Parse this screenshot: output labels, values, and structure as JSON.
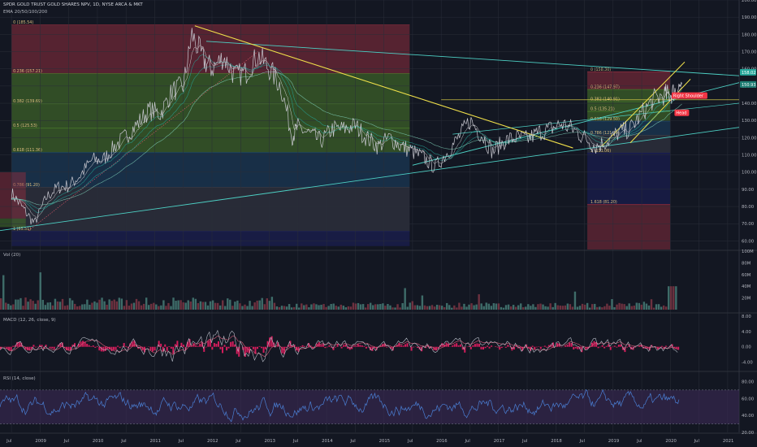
{
  "header": {
    "title": "SPDR GOLD TRUST GOLD SHARES NPV, 1D, NYSE ARCA & MKT",
    "indicator": "EMA 20/50/100/200"
  },
  "colors": {
    "background": "#131722",
    "price": "#c9c9d1",
    "ema": "#26a69a",
    "trend_yellow": "#f0e04a",
    "trend_teal": "#4dd0c4",
    "fib_red": "#8e2e3e",
    "fib_green": "#4a7a2a",
    "fib_blue": "#1e4466",
    "fib_navy": "#1c1f5c",
    "macd_hist": "#e91e63",
    "rsi_line": "#4a7fd4",
    "rsi_band": "#3c2a56",
    "pattern_label": "#f23645"
  },
  "panels": {
    "vol_label": "Vol (20)",
    "macd_label": "MACD (12, 26, close, 9)",
    "rsi_label": "RSI (14, close)"
  },
  "chart_data": [
    {
      "type": "line",
      "title": "SPDR GOLD TRUST GOLD SHARES NPV, 1D, NYSE ARCA & MKT",
      "x": [
        2008.5,
        2008.7,
        2008.9,
        2009.1,
        2009.3,
        2009.5,
        2009.7,
        2009.9,
        2010.1,
        2010.3,
        2010.5,
        2010.7,
        2010.9,
        2011.1,
        2011.3,
        2011.5,
        2011.65,
        2011.85,
        2012.0,
        2012.2,
        2012.4,
        2012.6,
        2012.8,
        2013.0,
        2013.2,
        2013.4,
        2013.5,
        2013.7,
        2013.9,
        2014.1,
        2014.3,
        2014.5,
        2014.7,
        2014.9,
        2015.1,
        2015.3,
        2015.5,
        2015.7,
        2015.9,
        2016.1,
        2016.3,
        2016.5,
        2016.7,
        2016.9,
        2017.1,
        2017.3,
        2017.5,
        2017.7,
        2017.9,
        2018.1,
        2018.3,
        2018.5,
        2018.7,
        2018.9,
        2019.1,
        2019.3,
        2019.5,
        2019.7,
        2019.9,
        2020.0,
        2020.1,
        2020.2
      ],
      "y": [
        88,
        79,
        70,
        85,
        91,
        92,
        98,
        107,
        107,
        115,
        121,
        128,
        136,
        134,
        147,
        150,
        180,
        165,
        160,
        167,
        156,
        158,
        168,
        160,
        150,
        121,
        126,
        122,
        118,
        125,
        125,
        127,
        120,
        115,
        120,
        115,
        112,
        108,
        103,
        111,
        120,
        130,
        122,
        112,
        118,
        120,
        119,
        123,
        125,
        128,
        125,
        120,
        115,
        118,
        123,
        125,
        134,
        142,
        145,
        145,
        148,
        151
      ],
      "xlim": [
        2008.3,
        2021.2
      ],
      "ylim": [
        55,
        200
      ],
      "y_ticks": [
        60,
        70,
        80,
        90,
        100,
        110,
        120,
        130,
        140,
        150,
        160,
        170,
        180,
        190,
        200
      ],
      "x_ticks": [
        "Jul",
        "2009",
        "Jul",
        "2010",
        "Jul",
        "2011",
        "Jul",
        "2012",
        "Jul",
        "2013",
        "Jul",
        "2014",
        "Jul",
        "2015",
        "Jul",
        "2016",
        "Jul",
        "2017",
        "Jul",
        "2018",
        "Jul",
        "2019",
        "Jul",
        "2020",
        "Jul",
        "2021"
      ],
      "x_tick_values": [
        2008.5,
        2009,
        2009.5,
        2010,
        2010.5,
        2011,
        2011.5,
        2012,
        2012.5,
        2013,
        2013.5,
        2014,
        2014.5,
        2015,
        2015.5,
        2016,
        2016.5,
        2017,
        2017.5,
        2018,
        2018.5,
        2019,
        2019.5,
        2020,
        2020.5,
        2021
      ],
      "series": [
        {
          "name": "EMA 20/50/100/200"
        }
      ],
      "fib_left": {
        "x_range": [
          2008.5,
          2015.45
        ],
        "levels": [
          {
            "label": "0 (185.54)",
            "value": 185.54
          },
          {
            "label": "0.236 (157.21)",
            "value": 157.21
          },
          {
            "label": "0.382 (139.69)",
            "value": 139.69
          },
          {
            "label": "0.5 (125.53)",
            "value": 125.53
          },
          {
            "label": "0.618 (111.36)",
            "value": 111.36
          },
          {
            "label": "0.786 (91.20)",
            "value": 91.2
          },
          {
            "label": "1 (65.51)",
            "value": 65.51
          }
        ]
      },
      "fib_right": {
        "x_range": [
          2018.55,
          2020.0
        ],
        "levels": [
          {
            "label": "0 (158.30)",
            "value": 158.3
          },
          {
            "label": "0.236 (147.97)",
            "value": 147.97
          },
          {
            "label": "0.382 (140.91)",
            "value": 140.91
          },
          {
            "label": "0.5 (135.21)",
            "value": 135.21
          },
          {
            "label": "0.618 (129.50)",
            "value": 129.5
          },
          {
            "label": "0.786 (121.39)",
            "value": 121.39
          },
          {
            "label": "1 (111.06)",
            "value": 111.06
          },
          {
            "label": "1.618 (81.20)",
            "value": 81.2
          }
        ]
      },
      "annotations": [
        "Right Shoulder",
        "Head"
      ],
      "price_tags": [
        "158.02",
        "150.93"
      ]
    },
    {
      "type": "bar",
      "title": "Vol (20)",
      "ylim": [
        0,
        100
      ],
      "y_ticks": [
        "20M",
        "40M",
        "60M",
        "80M",
        "100M"
      ]
    },
    {
      "type": "line",
      "title": "MACD (12, 26, close, 9)",
      "ylim": [
        -6,
        8
      ],
      "y_ticks": [
        "-4.00",
        "0.00",
        "4.00",
        "8.00"
      ]
    },
    {
      "type": "line",
      "title": "RSI (14, close)",
      "ylim": [
        20,
        90
      ],
      "y_ticks": [
        "20.00",
        "40.00",
        "60.00",
        "80.00"
      ],
      "bands": [
        30,
        70
      ]
    }
  ]
}
